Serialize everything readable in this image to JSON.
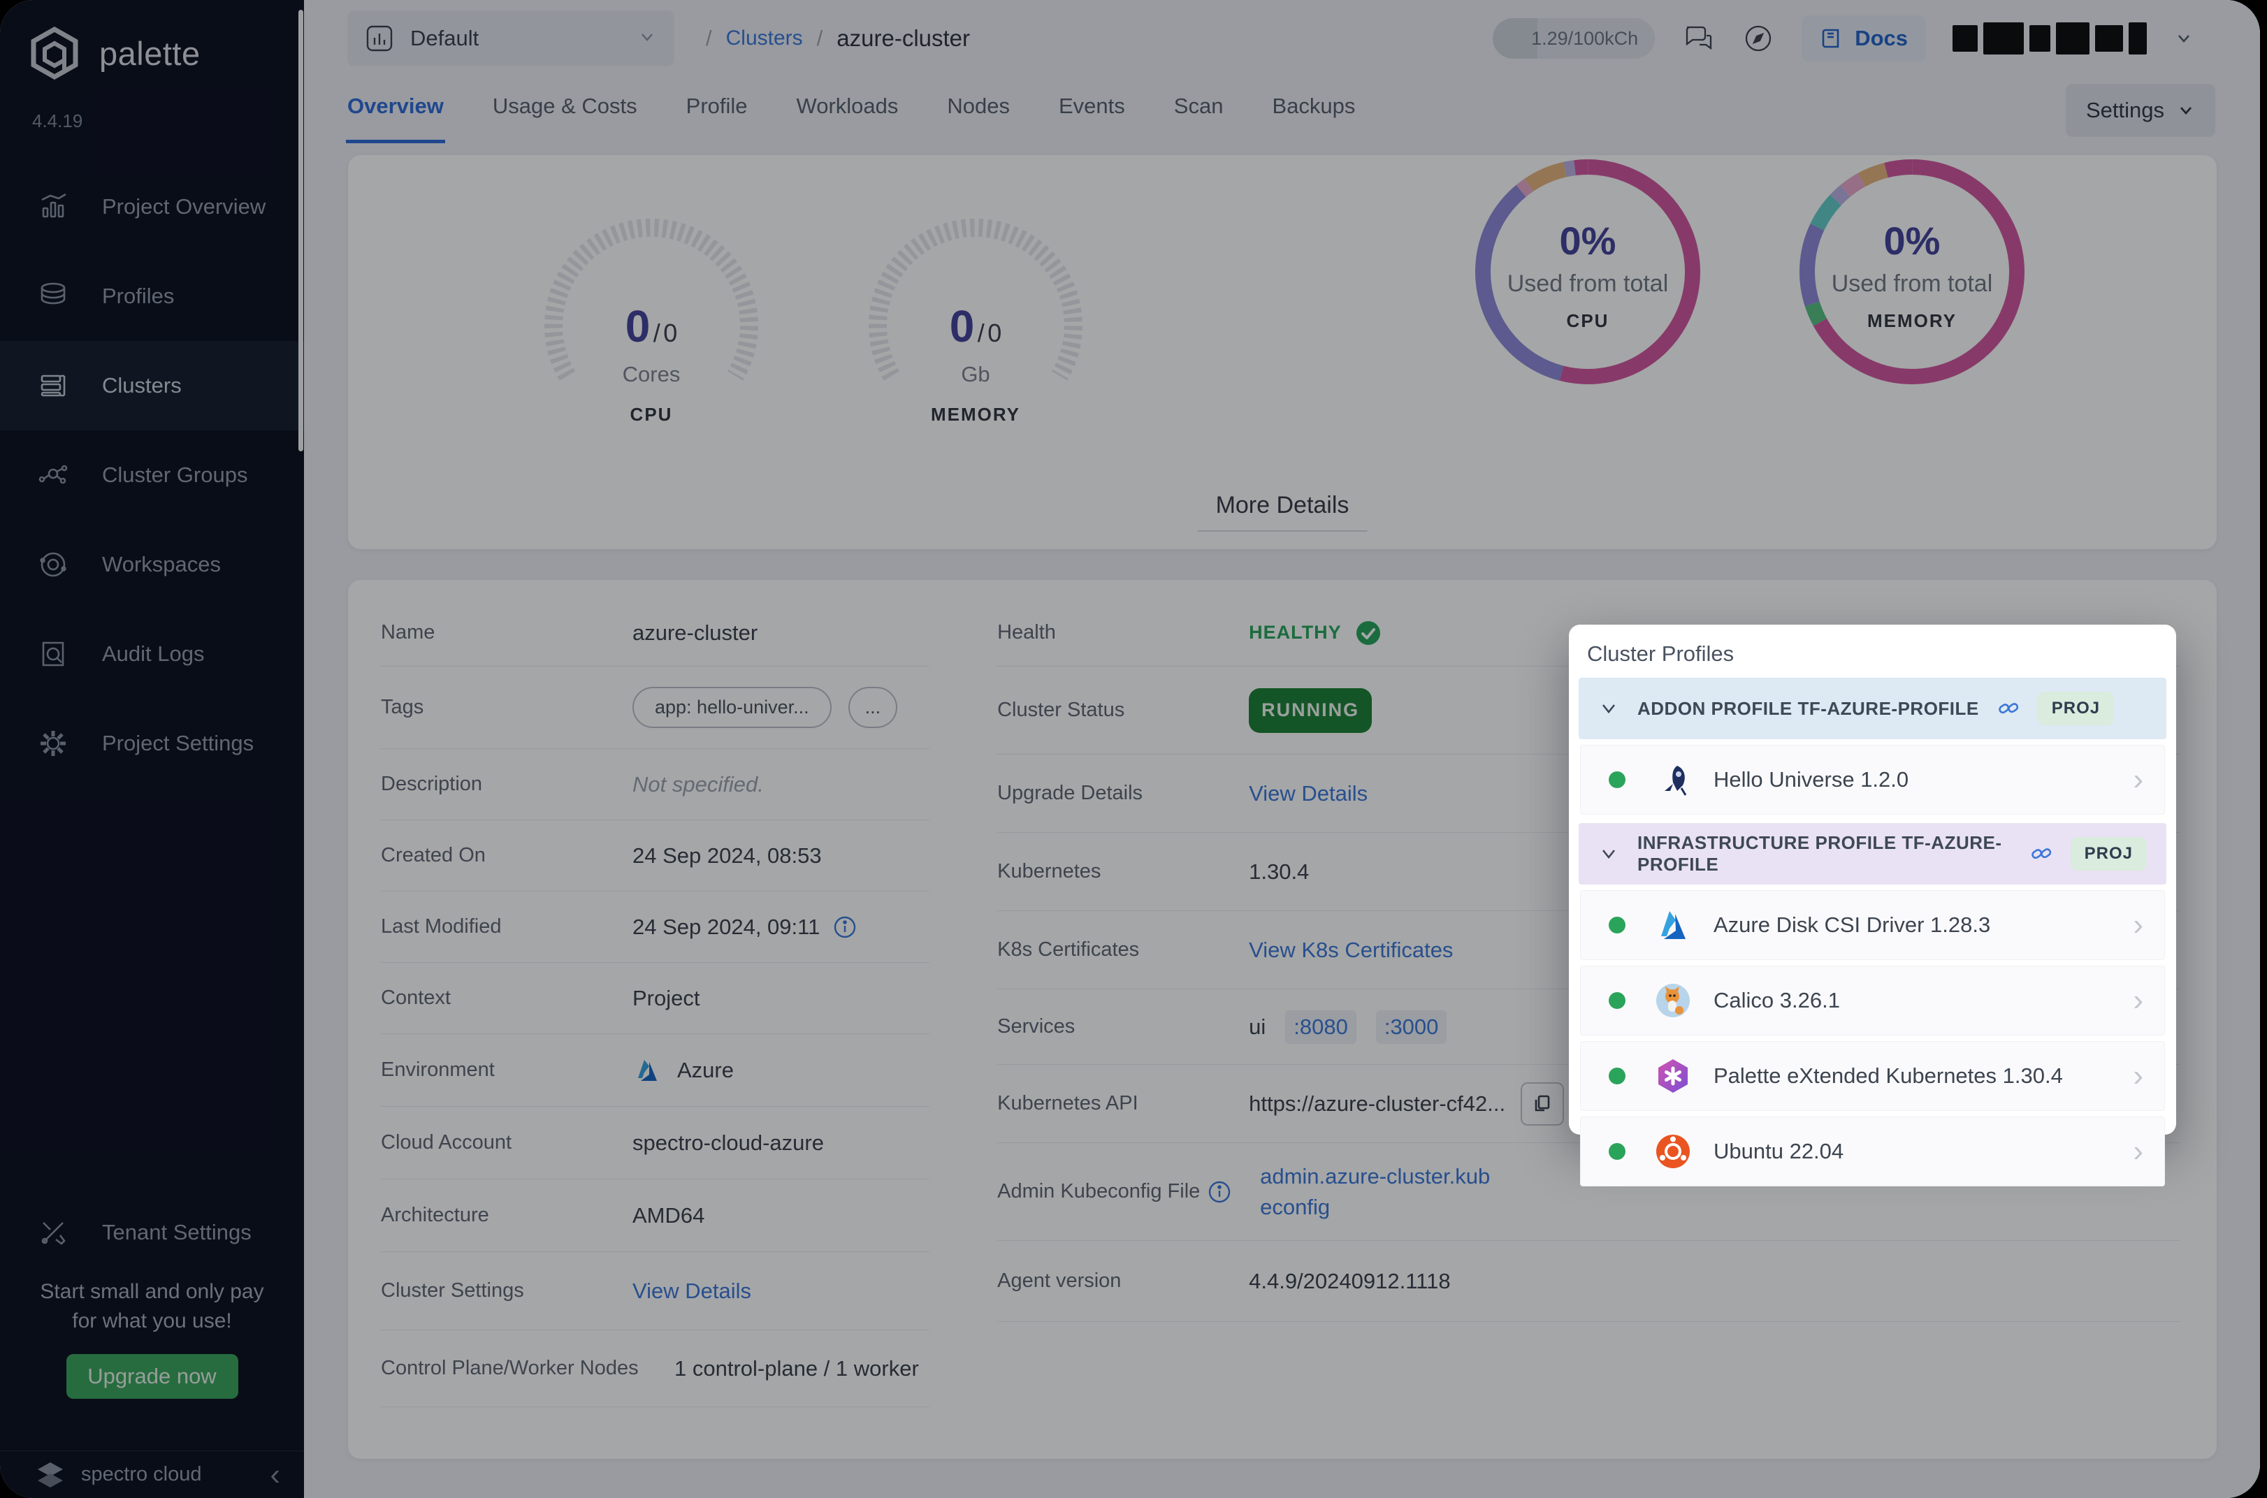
{
  "app": {
    "brand": "palette",
    "version": "4.4.19"
  },
  "sidebar": {
    "items": [
      {
        "label": "Project Overview",
        "icon": "bar-chart-icon"
      },
      {
        "label": "Profiles",
        "icon": "layers-icon"
      },
      {
        "label": "Clusters",
        "icon": "server-list-icon"
      },
      {
        "label": "Cluster Groups",
        "icon": "molecule-icon"
      },
      {
        "label": "Workspaces",
        "icon": "orbit-icon"
      },
      {
        "label": "Audit Logs",
        "icon": "log-search-icon"
      },
      {
        "label": "Project Settings",
        "icon": "gear-icon"
      }
    ],
    "active_item": "Clusters",
    "tenant_settings": "Tenant Settings",
    "promo_line1": "Start small and only pay",
    "promo_line2": "for what you use!",
    "upgrade_label": "Upgrade now",
    "footer_brand": "spectro cloud"
  },
  "topbar": {
    "project_selector": "Default",
    "breadcrumb": {
      "separator": "/",
      "root": "Clusters",
      "current": "azure-cluster"
    },
    "usage": "1.29/100kCh",
    "docs_label": "Docs"
  },
  "tabs": {
    "items": [
      "Overview",
      "Usage & Costs",
      "Profile",
      "Workloads",
      "Nodes",
      "Events",
      "Scan",
      "Backups"
    ],
    "active": "Overview",
    "settings_label": "Settings"
  },
  "metrics": {
    "gauges": [
      {
        "value": "0",
        "sep": "/",
        "total": "0",
        "unit": "Cores",
        "caption": "CPU"
      },
      {
        "value": "0",
        "sep": "/",
        "total": "0",
        "unit": "Gb",
        "caption": "MEMORY"
      }
    ],
    "donuts": [
      {
        "percent": "0%",
        "label": "Used from total",
        "caption": "CPU"
      },
      {
        "percent": "0%",
        "label": "Used from total",
        "caption": "MEMORY"
      }
    ],
    "more_details": "More Details"
  },
  "details": {
    "left": [
      {
        "label": "Name",
        "value": "azure-cluster"
      },
      {
        "label": "Tags",
        "pills": [
          "app: hello-univer...",
          "..."
        ]
      },
      {
        "label": "Description",
        "value": "Not specified."
      },
      {
        "label": "Created On",
        "value": "24 Sep 2024, 08:53"
      },
      {
        "label": "Last Modified",
        "value": "24 Sep 2024, 09:11"
      },
      {
        "label": "Context",
        "value": "Project"
      },
      {
        "label": "Environment",
        "value": "Azure"
      },
      {
        "label": "Cloud Account",
        "value": "spectro-cloud-azure"
      },
      {
        "label": "Architecture",
        "value": "AMD64"
      },
      {
        "label": "Cluster Settings",
        "link": "View Details"
      },
      {
        "label": "Control Plane/Worker Nodes",
        "value": "1 control-plane / 1 worker"
      }
    ],
    "right": [
      {
        "label": "Health",
        "value": "HEALTHY"
      },
      {
        "label": "Cluster Status",
        "value": "RUNNING"
      },
      {
        "label": "Upgrade Details",
        "link": "View Details"
      },
      {
        "label": "Kubernetes",
        "value": "1.30.4"
      },
      {
        "label": "K8s Certificates",
        "link": "View K8s Certificates"
      },
      {
        "label": "Services",
        "value": "ui",
        "ports": [
          ":8080",
          ":3000"
        ]
      },
      {
        "label": "Kubernetes API",
        "value": "https://azure-cluster-cf42..."
      },
      {
        "label": "Admin Kubeconfig File",
        "link": "admin.azure-cluster.kubeconfig"
      },
      {
        "label": "Agent version",
        "value": "4.4.9/20240912.1118"
      }
    ]
  },
  "popup": {
    "title": "Cluster Profiles",
    "sections": [
      {
        "label": "ADDON PROFILE TF-AZURE-PROFILE",
        "badge": "PROJ",
        "items": [
          {
            "name": "Hello Universe 1.2.0",
            "icon": "hello-universe-icon"
          }
        ]
      },
      {
        "label": "INFRASTRUCTURE PROFILE TF-AZURE-PROFILE",
        "badge": "PROJ",
        "items": [
          {
            "name": "Azure Disk CSI Driver 1.28.3",
            "icon": "azure-icon"
          },
          {
            "name": "Calico 3.26.1",
            "icon": "calico-icon"
          },
          {
            "name": "Palette eXtended Kubernetes 1.30.4",
            "icon": "palette-kubernetes-icon"
          },
          {
            "name": "Ubuntu 22.04",
            "icon": "ubuntu-icon"
          }
        ]
      }
    ]
  },
  "colors": {
    "accent_blue": "#2f6bd8",
    "link_blue": "#3b77d8",
    "healthy_green": "#27a55b",
    "running_green": "#1d8038",
    "upgrade_green": "#3aa55d",
    "indigo_value": "#44449b",
    "sidebar_bg": "#0c1020",
    "fab_purple": "#756dd9"
  },
  "chart_data": [
    {
      "type": "gauge",
      "caption": "CPU",
      "used": 0,
      "total": 0,
      "unit": "Cores",
      "center_text": "0 / 0"
    },
    {
      "type": "gauge",
      "caption": "MEMORY",
      "used": 0,
      "total": 0,
      "unit": "Gb",
      "center_text": "0 / 0"
    },
    {
      "type": "donut",
      "caption": "CPU",
      "percent": 0,
      "center_text": "0%",
      "label": "Used from total",
      "segments": [
        {
          "name": "magenta",
          "pct": 54,
          "color": "#d1569f"
        },
        {
          "name": "purple",
          "pct": 35,
          "color": "#8d88d8"
        },
        {
          "name": "light-pink",
          "pct": 1.5,
          "color": "#e8a9cc"
        },
        {
          "name": "sand",
          "pct": 6,
          "color": "#e4b57e"
        },
        {
          "name": "lavender",
          "pct": 1.5,
          "color": "#bcb2e6"
        },
        {
          "name": "magenta-2",
          "pct": 2,
          "color": "#d1569f"
        }
      ]
    },
    {
      "type": "donut",
      "caption": "MEMORY",
      "percent": 0,
      "center_text": "0%",
      "label": "Used from total",
      "segments": [
        {
          "name": "magenta",
          "pct": 67,
          "color": "#d1569f"
        },
        {
          "name": "green",
          "pct": 3,
          "color": "#57c083"
        },
        {
          "name": "purple",
          "pct": 12,
          "color": "#8d88d8"
        },
        {
          "name": "teal",
          "pct": 5,
          "color": "#63cdc8"
        },
        {
          "name": "lavender",
          "pct": 2,
          "color": "#bcb2e6"
        },
        {
          "name": "pink",
          "pct": 3,
          "color": "#e8a9cc"
        },
        {
          "name": "sand",
          "pct": 4,
          "color": "#e4b57e"
        },
        {
          "name": "magenta-2",
          "pct": 4,
          "color": "#d1569f"
        }
      ]
    }
  ]
}
